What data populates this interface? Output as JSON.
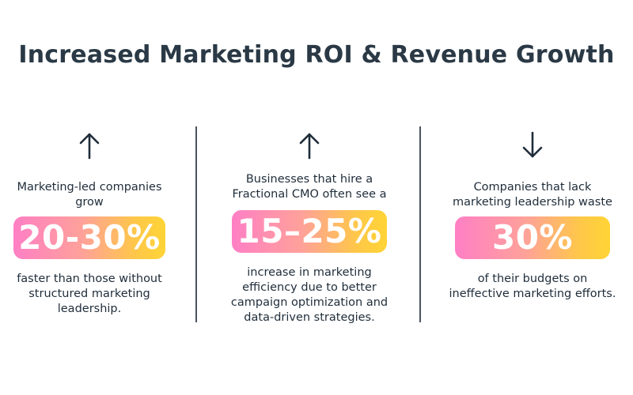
{
  "title": "Increased Marketing ROI & Revenue Growth",
  "stats": [
    {
      "direction": "up",
      "arrow_icon": "arrow-up-icon",
      "top_text": "Marketing-led companies grow",
      "value": "20-30%",
      "bottom_text": "faster than those without structured marketing leadership."
    },
    {
      "direction": "up",
      "arrow_icon": "arrow-up-icon",
      "top_text": "Businesses that hire a Fractional CMO often see a",
      "value": "15–25%",
      "bottom_text": "increase in marketing efficiency due to better campaign optimization and data-driven strategies."
    },
    {
      "direction": "down",
      "arrow_icon": "arrow-down-icon",
      "top_text": "Companies that lack marketing leadership waste",
      "value": "30%",
      "bottom_text": "of their budgets on ineffective marketing efforts."
    }
  ],
  "colors": {
    "title": "#2a3945",
    "text": "#1f2d3a",
    "divider": "#4a545e",
    "gradient_start": "#ff7fc5",
    "gradient_end": "#ffd435"
  }
}
